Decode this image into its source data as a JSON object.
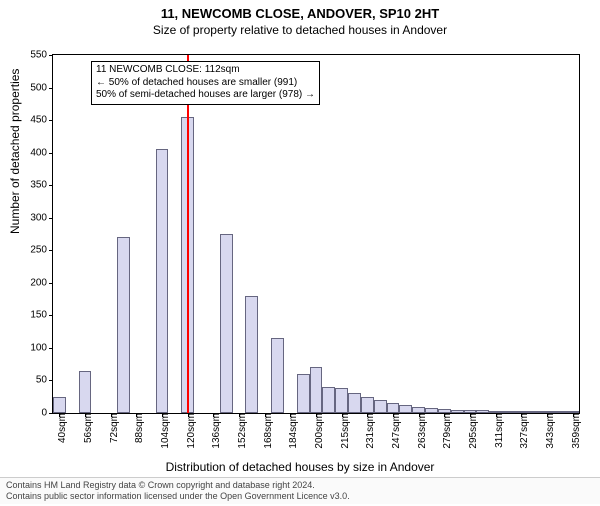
{
  "title": "11, NEWCOMB CLOSE, ANDOVER, SP10 2HT",
  "subtitle": "Size of property relative to detached houses in Andover",
  "ylabel": "Number of detached properties",
  "xlabel": "Distribution of detached houses by size in Andover",
  "chart": {
    "type": "histogram",
    "bar_fill": "#d8d8ef",
    "bar_stroke": "#666680",
    "background": "#ffffff",
    "axis_color": "#000000",
    "ylim": [
      0,
      550
    ],
    "yticks": [
      0,
      50,
      100,
      150,
      200,
      250,
      300,
      350,
      400,
      450,
      500,
      550
    ],
    "xticks": [
      "40sqm",
      "56sqm",
      "72sqm",
      "88sqm",
      "104sqm",
      "120sqm",
      "136sqm",
      "152sqm",
      "168sqm",
      "184sqm",
      "200sqm",
      "215sqm",
      "231sqm",
      "247sqm",
      "263sqm",
      "279sqm",
      "295sqm",
      "311sqm",
      "327sqm",
      "343sqm",
      "359sqm"
    ],
    "bar_count": 41,
    "values": [
      25,
      0,
      65,
      0,
      0,
      270,
      0,
      0,
      405,
      0,
      455,
      0,
      0,
      275,
      0,
      180,
      0,
      115,
      0,
      60,
      70,
      40,
      38,
      30,
      25,
      20,
      15,
      12,
      10,
      8,
      6,
      5,
      4,
      4,
      3,
      3,
      2,
      2,
      2,
      2,
      1
    ],
    "marker": {
      "color": "#ff0000",
      "position_index": 10,
      "width": 2
    }
  },
  "annotation": {
    "line1": "11 NEWCOMB CLOSE: 112sqm",
    "line2": "← 50% of detached houses are smaller (991)",
    "line3": "50% of semi-detached houses are larger (978) →"
  },
  "footer": {
    "line1": "Contains HM Land Registry data © Crown copyright and database right 2024.",
    "line2": "Contains public sector information licensed under the Open Government Licence v3.0."
  }
}
